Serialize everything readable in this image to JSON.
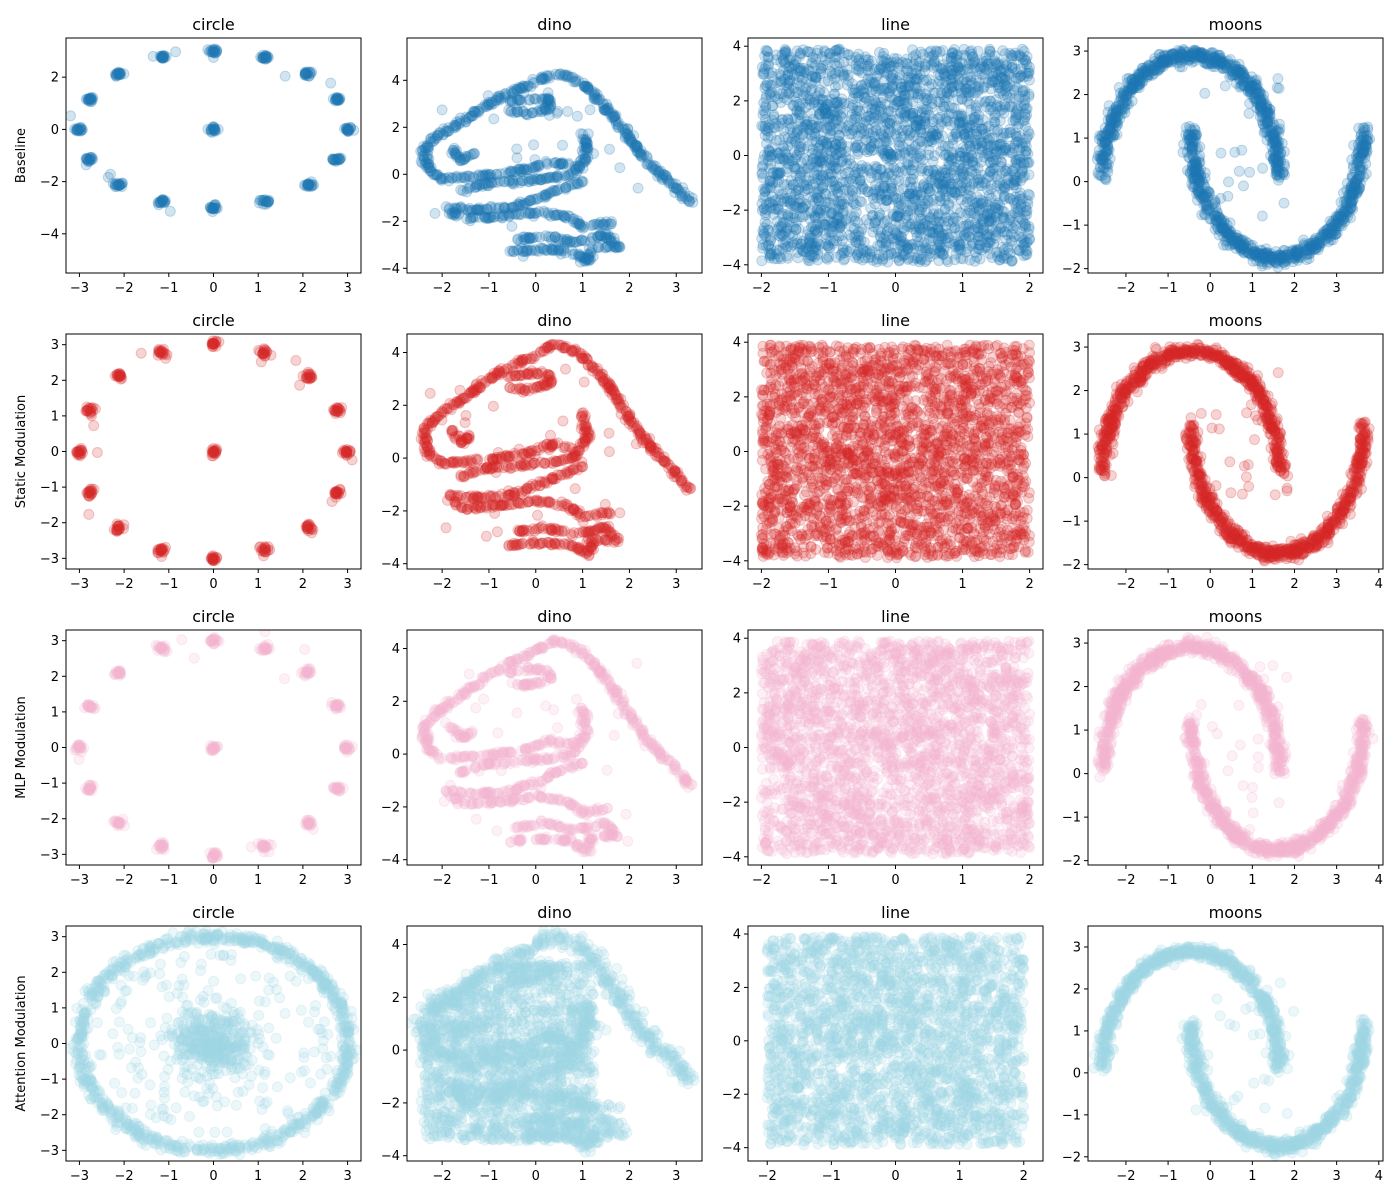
{
  "figure": {
    "row_labels": [
      "Baseline",
      "Static Modulation",
      "MLP Modulation",
      "Attention Modulation"
    ],
    "row_colors": [
      "#1f77b4",
      "#d62728",
      "#f4b6d1",
      "#9fd8e4"
    ],
    "column_titles": [
      "circle",
      "dino",
      "line",
      "moons"
    ]
  },
  "chart_data": [
    {
      "type": "scatter",
      "row": "Baseline",
      "title": "circle",
      "color": "#1f77b4",
      "shape": "circle",
      "style": "clusters",
      "xlim": [
        -3.3,
        3.3
      ],
      "ylim": [
        -5.5,
        3.5
      ],
      "xticks": [
        -3,
        -2,
        -1,
        0,
        1,
        2,
        3
      ],
      "yticks": [
        -4,
        -2,
        0,
        2
      ],
      "alpha": 0.2
    },
    {
      "type": "scatter",
      "row": "Baseline",
      "title": "dino",
      "color": "#1f77b4",
      "shape": "dino",
      "style": "thick",
      "xlim": [
        -2.75,
        3.55
      ],
      "ylim": [
        -4.2,
        5.8
      ],
      "xticks": [
        -2,
        -1,
        0,
        1,
        2,
        3
      ],
      "yticks": [
        -4,
        -2,
        0,
        2,
        4
      ],
      "alpha": 0.2
    },
    {
      "type": "scatter",
      "row": "Baseline",
      "title": "line",
      "color": "#1f77b4",
      "shape": "line",
      "style": "dense",
      "xlim": [
        -2.2,
        2.2
      ],
      "ylim": [
        -4.3,
        4.3
      ],
      "xticks": [
        -2,
        -1,
        0,
        1,
        2
      ],
      "yticks": [
        -4,
        -2,
        0,
        2,
        4
      ],
      "alpha": 0.2
    },
    {
      "type": "scatter",
      "row": "Baseline",
      "title": "moons",
      "color": "#1f77b4",
      "shape": "moons",
      "style": "thick",
      "xlim": [
        -2.9,
        4.1
      ],
      "ylim": [
        -2.1,
        3.3
      ],
      "xticks": [
        -2,
        -1,
        0,
        1,
        2,
        3
      ],
      "yticks": [
        -2,
        -1,
        0,
        1,
        2,
        3
      ],
      "alpha": 0.2
    },
    {
      "type": "scatter",
      "row": "Static Modulation",
      "title": "circle",
      "color": "#d62728",
      "shape": "circle",
      "style": "clusters",
      "xlim": [
        -3.3,
        3.3
      ],
      "ylim": [
        -3.3,
        3.3
      ],
      "xticks": [
        -3,
        -2,
        -1,
        0,
        1,
        2,
        3
      ],
      "yticks": [
        -3,
        -2,
        -1,
        0,
        1,
        2,
        3
      ],
      "alpha": 0.2
    },
    {
      "type": "scatter",
      "row": "Static Modulation",
      "title": "dino",
      "color": "#d62728",
      "shape": "dino",
      "style": "thick",
      "xlim": [
        -2.75,
        3.55
      ],
      "ylim": [
        -4.2,
        4.7
      ],
      "xticks": [
        -2,
        -1,
        0,
        1,
        2,
        3
      ],
      "yticks": [
        -4,
        -2,
        0,
        2,
        4
      ],
      "alpha": 0.2
    },
    {
      "type": "scatter",
      "row": "Static Modulation",
      "title": "line",
      "color": "#d62728",
      "shape": "line",
      "style": "dense",
      "xlim": [
        -2.2,
        2.2
      ],
      "ylim": [
        -4.3,
        4.3
      ],
      "xticks": [
        -2,
        -1,
        0,
        1,
        2
      ],
      "yticks": [
        -4,
        -2,
        0,
        2,
        4
      ],
      "alpha": 0.2
    },
    {
      "type": "scatter",
      "row": "Static Modulation",
      "title": "moons",
      "color": "#d62728",
      "shape": "moons",
      "style": "thick",
      "xlim": [
        -2.9,
        4.1
      ],
      "ylim": [
        -2.1,
        3.3
      ],
      "xticks": [
        -2,
        -1,
        0,
        1,
        2,
        3,
        4
      ],
      "yticks": [
        -2,
        -1,
        0,
        1,
        2,
        3
      ],
      "alpha": 0.2
    },
    {
      "type": "scatter",
      "row": "MLP Modulation",
      "title": "circle",
      "color": "#f4b6d1",
      "shape": "circle",
      "style": "clusters",
      "xlim": [
        -3.3,
        3.3
      ],
      "ylim": [
        -3.3,
        3.3
      ],
      "xticks": [
        -3,
        -2,
        -1,
        0,
        1,
        2,
        3
      ],
      "yticks": [
        -3,
        -2,
        -1,
        0,
        1,
        2,
        3
      ],
      "alpha": 0.2
    },
    {
      "type": "scatter",
      "row": "MLP Modulation",
      "title": "dino",
      "color": "#f4b6d1",
      "shape": "dino",
      "style": "thick",
      "xlim": [
        -2.75,
        3.55
      ],
      "ylim": [
        -4.2,
        4.7
      ],
      "xticks": [
        -2,
        -1,
        0,
        1,
        2,
        3
      ],
      "yticks": [
        -4,
        -2,
        0,
        2,
        4
      ],
      "alpha": 0.2
    },
    {
      "type": "scatter",
      "row": "MLP Modulation",
      "title": "line",
      "color": "#f4b6d1",
      "shape": "line",
      "style": "dense",
      "xlim": [
        -2.2,
        2.2
      ],
      "ylim": [
        -4.3,
        4.3
      ],
      "xticks": [
        -2,
        -1,
        0,
        1,
        2
      ],
      "yticks": [
        -4,
        -2,
        0,
        2,
        4
      ],
      "alpha": 0.2
    },
    {
      "type": "scatter",
      "row": "MLP Modulation",
      "title": "moons",
      "color": "#f4b6d1",
      "shape": "moons",
      "style": "thick",
      "xlim": [
        -2.9,
        4.1
      ],
      "ylim": [
        -2.1,
        3.3
      ],
      "xticks": [
        -2,
        -1,
        0,
        1,
        2,
        3,
        4
      ],
      "yticks": [
        -2,
        -1,
        0,
        1,
        2,
        3
      ],
      "alpha": 0.2
    },
    {
      "type": "scatter",
      "row": "Attention Modulation",
      "title": "circle",
      "color": "#9fd8e4",
      "shape": "circle",
      "style": "ring",
      "xlim": [
        -3.3,
        3.3
      ],
      "ylim": [
        -3.3,
        3.3
      ],
      "xticks": [
        -3,
        -2,
        -1,
        0,
        1,
        2,
        3
      ],
      "yticks": [
        -3,
        -2,
        -1,
        0,
        1,
        2,
        3
      ],
      "alpha": 0.2
    },
    {
      "type": "scatter",
      "row": "Attention Modulation",
      "title": "dino",
      "color": "#9fd8e4",
      "shape": "dino",
      "style": "blob",
      "xlim": [
        -2.75,
        3.55
      ],
      "ylim": [
        -4.2,
        4.7
      ],
      "xticks": [
        -2,
        -1,
        0,
        1,
        2,
        3
      ],
      "yticks": [
        -4,
        -2,
        0,
        2,
        4
      ],
      "alpha": 0.2
    },
    {
      "type": "scatter",
      "row": "Attention Modulation",
      "title": "line",
      "color": "#9fd8e4",
      "shape": "line",
      "style": "dense",
      "xlim": [
        -2.3,
        2.3
      ],
      "ylim": [
        -4.5,
        4.3
      ],
      "xticks": [
        -2,
        -1,
        0,
        1,
        2
      ],
      "yticks": [
        -4,
        -2,
        0,
        2,
        4
      ],
      "alpha": 0.2
    },
    {
      "type": "scatter",
      "row": "Attention Modulation",
      "title": "moons",
      "color": "#9fd8e4",
      "shape": "moons",
      "style": "thick",
      "xlim": [
        -2.9,
        4.1
      ],
      "ylim": [
        -2.1,
        3.5
      ],
      "xticks": [
        -2,
        -1,
        0,
        1,
        2,
        3,
        4
      ],
      "yticks": [
        -2,
        -1,
        0,
        1,
        2,
        3
      ],
      "alpha": 0.2
    }
  ]
}
